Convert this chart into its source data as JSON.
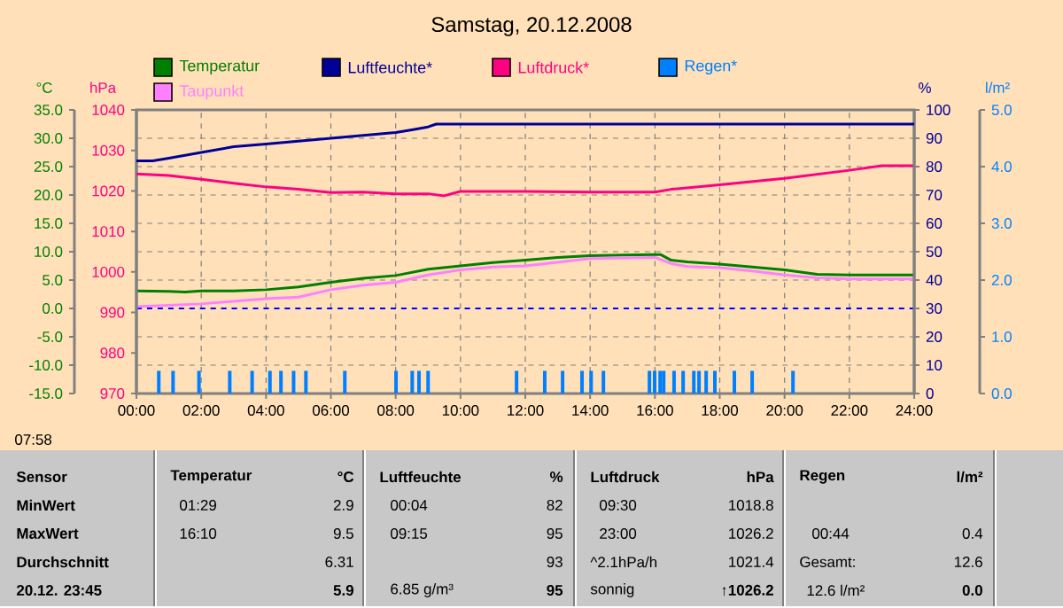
{
  "chart_data": [
    {
      "type": "line",
      "title": "Samstag, 20.12.2008",
      "ylabel": "°C",
      "y2label": "hPa",
      "y3label": "%",
      "xlim": [
        0,
        24
      ],
      "xticks": [
        {
          "value": 0,
          "label": "00:00"
        },
        {
          "value": 2,
          "label": "02:00"
        },
        {
          "value": 4,
          "label": "04:00"
        },
        {
          "value": 6,
          "label": "06:00"
        },
        {
          "value": 8,
          "label": "08:00"
        },
        {
          "value": 10,
          "label": "10:00"
        },
        {
          "value": 12,
          "label": "12:00"
        },
        {
          "value": 14,
          "label": "14:00"
        },
        {
          "value": 16,
          "label": "16:00"
        },
        {
          "value": 18,
          "label": "18:00"
        },
        {
          "value": 20,
          "label": "20:00"
        },
        {
          "value": 22,
          "label": "22:00"
        },
        {
          "value": 24,
          "label": "24:00"
        }
      ],
      "ylim": [
        -15,
        35
      ],
      "yticks": [
        {
          "value": -15,
          "label": "-15.0"
        },
        {
          "value": -10,
          "label": "-10.0"
        },
        {
          "value": -5,
          "label": "-5.0"
        },
        {
          "value": 0,
          "label": "0.0"
        },
        {
          "value": 5,
          "label": "5.0"
        },
        {
          "value": 10,
          "label": "10.0"
        },
        {
          "value": 15,
          "label": "15.0"
        },
        {
          "value": 20,
          "label": "20.0"
        },
        {
          "value": 25,
          "label": "25.0"
        },
        {
          "value": 30,
          "label": "30.0"
        },
        {
          "value": 35,
          "label": "35.0"
        }
      ],
      "y2lim": [
        970,
        1040
      ],
      "y2ticks": [
        970,
        980,
        990,
        1000,
        1010,
        1020,
        1030,
        1040
      ],
      "y3lim": [
        0,
        100
      ],
      "y3ticks": [
        0,
        10,
        20,
        30,
        40,
        50,
        60,
        70,
        80,
        90,
        100
      ],
      "grid": true,
      "legend": "top",
      "ref_lines": [
        {
          "axis": "y",
          "value": 0,
          "color": "#0000ff",
          "line_style": "dashed"
        }
      ],
      "series": [
        {
          "name": "Temperatur",
          "color": "#008000",
          "x": [
            0,
            1,
            1.5,
            2,
            3,
            4,
            5,
            6,
            7,
            8,
            9,
            10,
            11,
            12,
            13,
            14,
            15,
            16,
            16.17,
            16.5,
            17,
            18,
            19,
            20,
            21,
            22,
            23,
            24
          ],
          "values": [
            3.1,
            3.0,
            2.9,
            3.1,
            3.1,
            3.3,
            3.8,
            4.6,
            5.3,
            5.8,
            6.9,
            7.5,
            8.1,
            8.5,
            9.0,
            9.3,
            9.4,
            9.5,
            9.5,
            8.5,
            8.2,
            7.8,
            7.3,
            6.8,
            6.0,
            5.9,
            5.9,
            5.9
          ]
        },
        {
          "name": "Taupunkt",
          "color": "#ff80ff",
          "x": [
            0,
            2,
            4,
            5,
            6,
            7,
            8,
            9,
            10,
            11,
            12,
            14,
            16,
            16.5,
            17,
            18,
            19,
            20,
            21,
            22,
            24
          ],
          "values": [
            0.3,
            0.8,
            1.7,
            2.0,
            3.3,
            4.1,
            4.6,
            5.9,
            6.8,
            7.3,
            7.5,
            8.8,
            9.0,
            7.9,
            7.4,
            7.2,
            6.6,
            5.9,
            5.4,
            5.2,
            5.2
          ]
        },
        {
          "name": "Luftfeuchte*",
          "color": "#000099",
          "axis": "y3",
          "x": [
            0,
            0.5,
            1,
            1.5,
            2,
            2.5,
            3,
            4,
            5,
            6,
            7,
            8,
            8.5,
            9,
            9.25,
            24
          ],
          "values": [
            82,
            82,
            83,
            84,
            85,
            86,
            87,
            88,
            89,
            90,
            91,
            92,
            93,
            94,
            95,
            95
          ]
        },
        {
          "name": "Luftdruck*",
          "color": "#ff0080",
          "axis": "y2",
          "x": [
            0,
            1,
            2,
            3,
            4,
            5,
            6,
            7,
            8,
            9,
            9.5,
            10,
            12,
            14,
            16,
            16.5,
            18,
            20,
            22,
            23,
            24
          ],
          "values": [
            1024.2,
            1023.8,
            1022.9,
            1021.9,
            1021.0,
            1020.4,
            1019.6,
            1019.7,
            1019.3,
            1019.3,
            1018.8,
            1019.9,
            1019.9,
            1019.7,
            1019.7,
            1020.4,
            1021.5,
            1023.1,
            1025.1,
            1026.2,
            1026.2
          ]
        }
      ],
      "annotations": [
        "07:58",
        "Sensor",
        "Temperatur",
        "°C",
        "Luftfeuchte",
        "%",
        "Luftdruck",
        "hPa",
        "Regen",
        "l/m²",
        "MinWert",
        "01:29",
        "2.9",
        "00:04",
        "82",
        "09:30",
        "1018.8",
        "MaxWert",
        "16:10",
        "9.5",
        "09:15",
        "95",
        "23:00",
        "1026.2",
        "00:44",
        "0.4",
        "Durchschnitt",
        "6.31",
        "93",
        "^2.1hPa/h",
        "1021.4",
        "Gesamt:",
        "12.6",
        "20.12. 23:45",
        "5.9",
        "6.85 g/m³",
        "95",
        "sonnig",
        "↑1026.2",
        "12.6 l/m²",
        "0.0"
      ]
    },
    {
      "type": "bar",
      "ylabel": "l/m²",
      "xlim": [
        0,
        24
      ],
      "ylim": [
        0,
        5
      ],
      "yticks": [
        {
          "value": 0,
          "label": "0.0"
        },
        {
          "value": 1,
          "label": "1.0"
        },
        {
          "value": 2,
          "label": "2.0"
        },
        {
          "value": 3,
          "label": "3.0"
        },
        {
          "value": 4,
          "label": "4.0"
        },
        {
          "value": 5,
          "label": "5.0"
        }
      ],
      "tick_labels": "y",
      "legend": "top",
      "series": [
        {
          "name": "Regen*",
          "color": "#0080ff",
          "x": [
            0.69,
            1.13,
            1.93,
            2.88,
            3.57,
            4.12,
            4.46,
            4.85,
            5.23,
            6.43,
            8.01,
            8.51,
            8.72,
            9.0,
            11.73,
            12.6,
            13.15,
            13.75,
            14.03,
            14.41,
            15.83,
            15.99,
            16.16,
            16.27,
            16.59,
            16.87,
            17.2,
            17.36,
            17.58,
            17.85,
            18.45,
            19.0,
            20.26
          ],
          "values": [
            0.4,
            0.4,
            0.4,
            0.4,
            0.4,
            0.4,
            0.4,
            0.4,
            0.4,
            0.4,
            0.4,
            0.4,
            0.4,
            0.4,
            0.4,
            0.4,
            0.4,
            0.4,
            0.4,
            0.4,
            0.4,
            0.4,
            0.4,
            0.4,
            0.4,
            0.4,
            0.4,
            0.4,
            0.4,
            0.4,
            0.4,
            0.4,
            0.4
          ]
        }
      ]
    }
  ]
}
